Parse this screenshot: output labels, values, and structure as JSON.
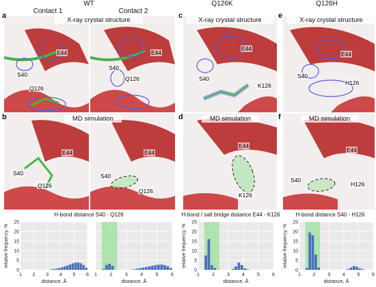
{
  "groups": {
    "wt": "WT",
    "q126k": "Q126K",
    "q126h": "Q126H"
  },
  "contacts": {
    "c1": "Contact 1",
    "c2": "Contact 2"
  },
  "panel_labels": {
    "a": "a",
    "b": "b",
    "c": "c",
    "d": "d",
    "e": "e",
    "f": "f"
  },
  "section_titles": {
    "xray": "X-ray crystal structure",
    "md": "MD simulation"
  },
  "residues": {
    "a1": {
      "e": "E44",
      "s": "S40",
      "q": "Q126"
    },
    "a2": {
      "e": "E44",
      "s": "S40",
      "q": "Q126"
    },
    "c": {
      "e": "E44",
      "s": "S40",
      "k": "K126"
    },
    "e": {
      "e": "E44",
      "s": "S40",
      "h": "H126"
    },
    "b1": {
      "e": "E44",
      "s": "S40",
      "q": "Q126"
    },
    "b2": {
      "e": "E44",
      "s": "S40",
      "q": "Q126"
    },
    "d": {
      "e": "E44",
      "k": "K126"
    },
    "f": {
      "e": "E44",
      "s": "S40",
      "h": "H126"
    }
  },
  "colors": {
    "helix": "#d42a2a",
    "carbon": "#3dbb3d",
    "density": "#5a58d8",
    "bar": "#4a6fbf",
    "highlight": "#9fe09f",
    "grid_bg": "#e9e9e9"
  },
  "chart_data": [
    {
      "type": "bar",
      "title": "H-bond distance S40 - Q126",
      "xlabel": "distance, Å",
      "ylabel": "relative frequency, %",
      "xlim": [
        1,
        6
      ],
      "ylim": [
        0,
        25
      ],
      "xticks": [
        "1",
        "2",
        "3",
        "4",
        "5",
        "6"
      ],
      "yticks": [
        "0",
        "5",
        "10",
        "15",
        "20",
        "25"
      ],
      "highlight": null,
      "x": [
        3.3,
        3.5,
        3.7,
        3.9,
        4.1,
        4.3,
        4.5,
        4.7,
        4.9,
        5.1,
        5.3,
        5.5,
        5.7,
        5.9
      ],
      "values": [
        0.3,
        0.5,
        0.7,
        1.0,
        1.4,
        1.8,
        2.3,
        2.8,
        3.4,
        3.8,
        3.9,
        3.5,
        2.6,
        1.2
      ]
    },
    {
      "type": "bar",
      "title": "",
      "xlabel": "distance, Å",
      "ylabel": "",
      "xlim": [
        1,
        6
      ],
      "ylim": [
        0,
        25
      ],
      "xticks": [
        "1",
        "2",
        "3",
        "4",
        "5",
        "6"
      ],
      "yticks": [],
      "highlight": [
        1.4,
        2.4
      ],
      "x": [
        1.5,
        1.7,
        1.9,
        2.1,
        3.5,
        3.7,
        3.9,
        4.1,
        4.3,
        4.5,
        4.7,
        4.9,
        5.1,
        5.3,
        5.5,
        5.7,
        5.9
      ],
      "values": [
        0.4,
        2.6,
        3.2,
        2.1,
        0.3,
        0.6,
        0.9,
        1.2,
        1.5,
        1.8,
        2.1,
        2.5,
        2.7,
        2.8,
        2.5,
        1.9,
        1.0
      ]
    },
    {
      "type": "bar",
      "title": "H-bond / salt bridge distance E44 - K126",
      "xlabel": "distance, Å",
      "ylabel": "relative frequency, %",
      "xlim": [
        1,
        6
      ],
      "ylim": [
        0,
        25
      ],
      "xticks": [
        "1",
        "2",
        "3",
        "4",
        "5",
        "6"
      ],
      "yticks": [
        "0",
        "5",
        "10",
        "15",
        "20",
        "25"
      ],
      "highlight": [
        1.4,
        2.4
      ],
      "x": [
        1.5,
        1.7,
        1.9,
        2.1,
        3.3,
        3.5,
        3.7,
        3.9,
        4.1,
        4.3
      ],
      "values": [
        7.5,
        16.0,
        2.5,
        1.0,
        0.5,
        1.8,
        3.8,
        2.5,
        0.8,
        0.3
      ]
    },
    {
      "type": "bar",
      "title": "H-bond distance S40 - H126",
      "xlabel": "distance, Å",
      "ylabel": "relative frequency, %",
      "xlim": [
        1,
        6
      ],
      "ylim": [
        0,
        25
      ],
      "xticks": [
        "1",
        "2",
        "3",
        "4",
        "5",
        "6"
      ],
      "yticks": [
        "0",
        "5",
        "10",
        "15",
        "20",
        "25"
      ],
      "highlight": [
        1.4,
        2.4
      ],
      "x": [
        1.5,
        1.7,
        1.9,
        2.1,
        2.3,
        4.3,
        4.5,
        4.7,
        4.9,
        5.1,
        5.3
      ],
      "values": [
        1.0,
        19.5,
        18.0,
        8.0,
        1.2,
        0.5,
        1.3,
        2.0,
        1.6,
        0.8,
        0.3
      ]
    }
  ]
}
